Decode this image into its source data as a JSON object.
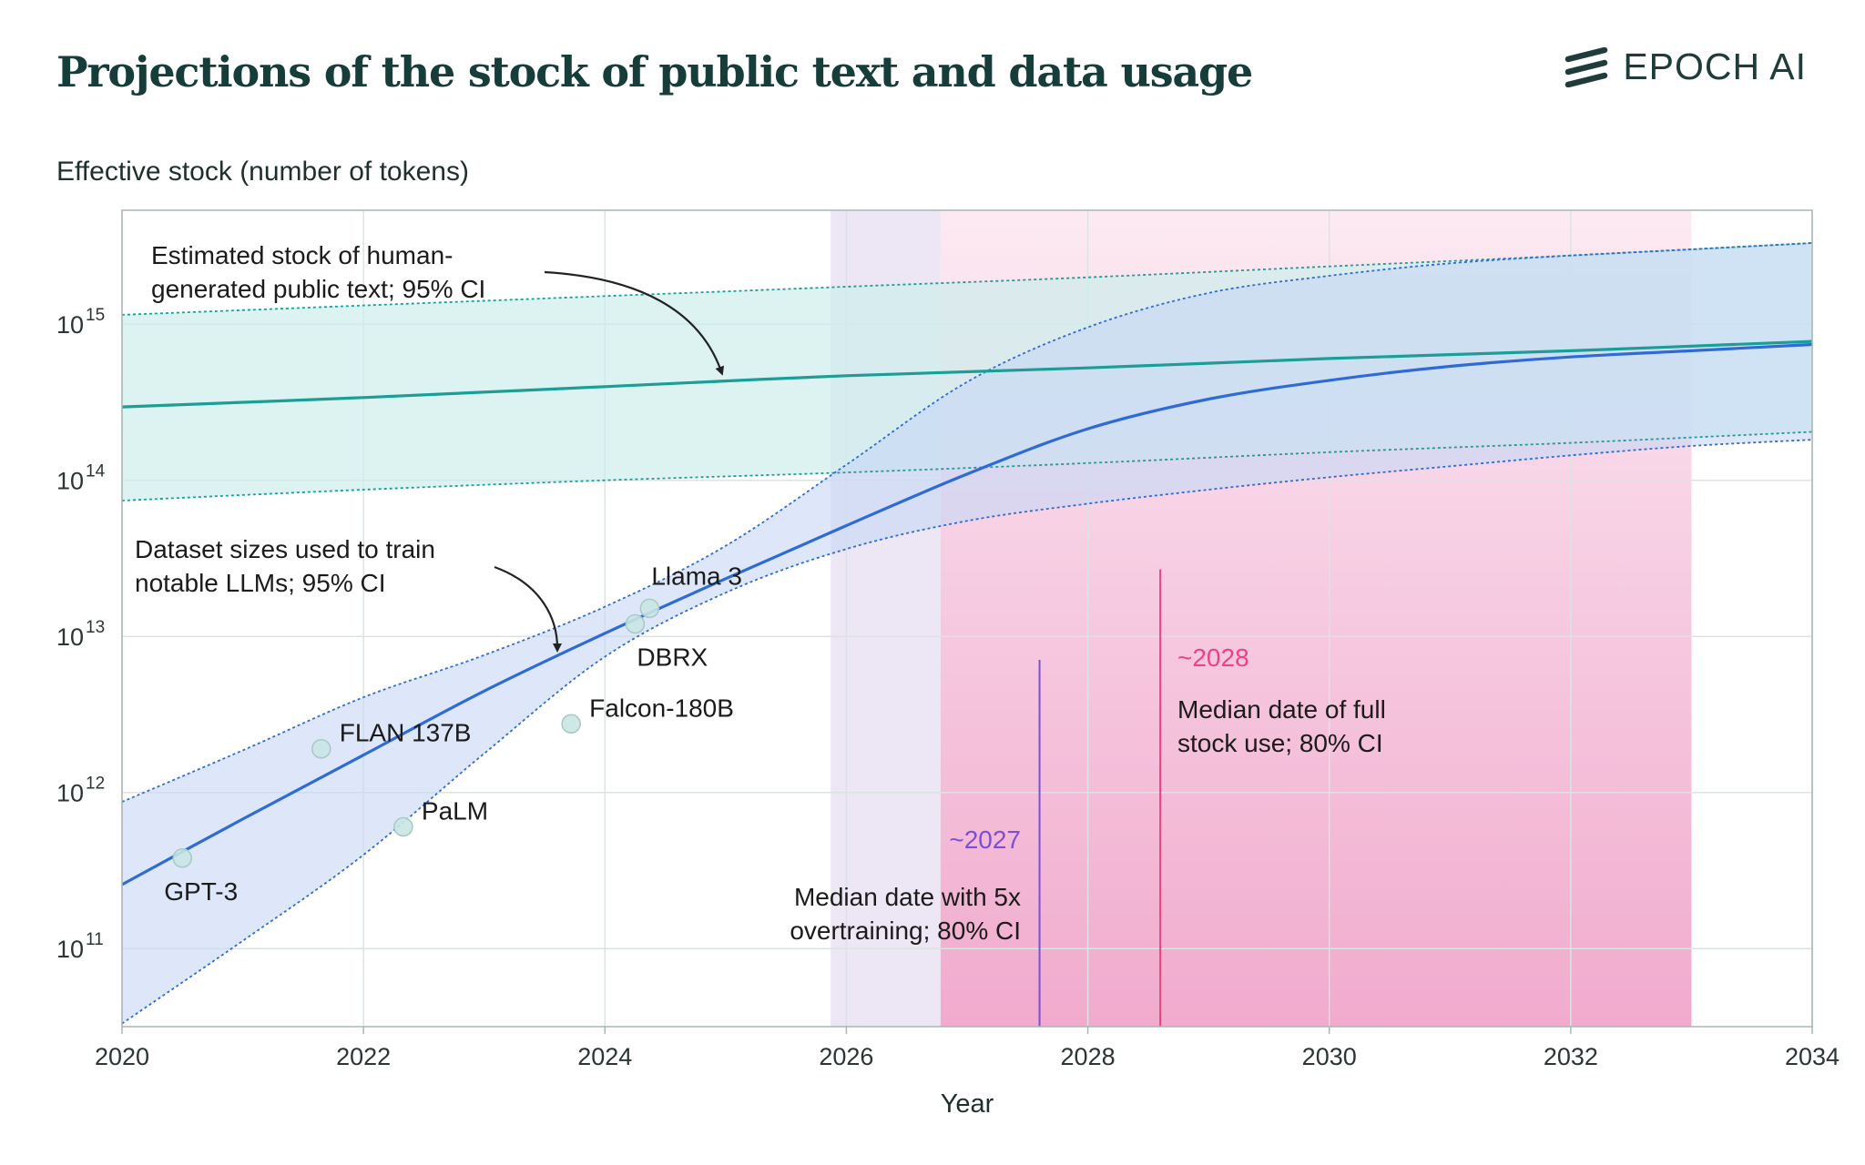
{
  "header": {
    "title": "Projections of the stock of public text and data usage"
  },
  "brand": {
    "name": "EPOCH AI",
    "icon": "epoch-logo-icon"
  },
  "chart_data": {
    "type": "line",
    "xlabel": "Year",
    "ylabel": "Effective stock (number of tokens)",
    "xlim": [
      2020,
      2034
    ],
    "ylim_log10": [
      10.5,
      15.73
    ],
    "yscale": "log",
    "grid": true,
    "x_ticks": [
      {
        "value": 2020,
        "label": "2020"
      },
      {
        "value": 2022,
        "label": "2022"
      },
      {
        "value": 2024,
        "label": "2024"
      },
      {
        "value": 2026,
        "label": "2026"
      },
      {
        "value": 2028,
        "label": "2028"
      },
      {
        "value": 2030,
        "label": "2030"
      },
      {
        "value": 2032,
        "label": "2032"
      },
      {
        "value": 2034,
        "label": "2034"
      }
    ],
    "y_ticks": [
      {
        "exp": 11,
        "base": "10",
        "sup": "11"
      },
      {
        "exp": 12,
        "base": "10",
        "sup": "12"
      },
      {
        "exp": 13,
        "base": "10",
        "sup": "13"
      },
      {
        "exp": 14,
        "base": "10",
        "sup": "14"
      },
      {
        "exp": 15,
        "base": "10",
        "sup": "15"
      }
    ],
    "stock": {
      "color": "#1a9e96",
      "band_color": "#cdeeec",
      "median": [
        [
          2020,
          14.47
        ],
        [
          2022,
          14.53
        ],
        [
          2024,
          14.6
        ],
        [
          2026,
          14.67
        ],
        [
          2028,
          14.72
        ],
        [
          2030,
          14.78
        ],
        [
          2032,
          14.83
        ],
        [
          2034,
          14.89
        ]
      ],
      "upper": [
        [
          2020,
          15.06
        ],
        [
          2022,
          15.12
        ],
        [
          2024,
          15.18
        ],
        [
          2026,
          15.24
        ],
        [
          2028,
          15.3
        ],
        [
          2030,
          15.37
        ],
        [
          2032,
          15.44
        ],
        [
          2034,
          15.52
        ]
      ],
      "lower": [
        [
          2020,
          13.87
        ],
        [
          2022,
          13.94
        ],
        [
          2024,
          14.0
        ],
        [
          2026,
          14.05
        ],
        [
          2028,
          14.11
        ],
        [
          2030,
          14.18
        ],
        [
          2032,
          14.24
        ],
        [
          2034,
          14.31
        ]
      ]
    },
    "dataset": {
      "color": "#2f6bd4",
      "band_color": "#c8d9f5",
      "median": [
        [
          2020,
          11.41
        ],
        [
          2021,
          11.83
        ],
        [
          2022,
          12.24
        ],
        [
          2023,
          12.65
        ],
        [
          2024,
          13.02
        ],
        [
          2025,
          13.37
        ],
        [
          2026,
          13.71
        ],
        [
          2027,
          14.04
        ],
        [
          2028,
          14.33
        ],
        [
          2029,
          14.52
        ],
        [
          2030,
          14.64
        ],
        [
          2031,
          14.73
        ],
        [
          2032,
          14.79
        ],
        [
          2033,
          14.83
        ],
        [
          2034,
          14.87
        ]
      ],
      "upper": [
        [
          2020,
          11.94
        ],
        [
          2021,
          12.27
        ],
        [
          2022,
          12.61
        ],
        [
          2023,
          12.88
        ],
        [
          2024,
          13.19
        ],
        [
          2025,
          13.58
        ],
        [
          2026,
          14.1
        ],
        [
          2027,
          14.63
        ],
        [
          2028,
          14.98
        ],
        [
          2029,
          15.2
        ],
        [
          2030,
          15.31
        ],
        [
          2031,
          15.39
        ],
        [
          2032,
          15.44
        ],
        [
          2033,
          15.48
        ],
        [
          2034,
          15.52
        ]
      ],
      "lower": [
        [
          2020,
          10.52
        ],
        [
          2021,
          11.05
        ],
        [
          2022,
          11.6
        ],
        [
          2023,
          12.25
        ],
        [
          2024,
          12.87
        ],
        [
          2025,
          13.28
        ],
        [
          2026,
          13.56
        ],
        [
          2027,
          13.74
        ],
        [
          2028,
          13.85
        ],
        [
          2029,
          13.94
        ],
        [
          2030,
          14.02
        ],
        [
          2031,
          14.09
        ],
        [
          2032,
          14.16
        ],
        [
          2033,
          14.22
        ],
        [
          2034,
          14.26
        ]
      ]
    },
    "models": [
      {
        "name": "GPT-3",
        "x": 2020.5,
        "log10_tokens": 11.58
      },
      {
        "name": "FLAN 137B",
        "x": 2021.65,
        "log10_tokens": 12.28
      },
      {
        "name": "PaLM",
        "x": 2022.33,
        "log10_tokens": 11.78
      },
      {
        "name": "Falcon-180B",
        "x": 2023.72,
        "log10_tokens": 12.44
      },
      {
        "name": "DBRX",
        "x": 2024.25,
        "log10_tokens": 13.08
      },
      {
        "name": "Llama 3",
        "x": 2024.37,
        "log10_tokens": 13.18
      }
    ],
    "shaded_regions": [
      {
        "name": "overtraining-ci",
        "x0": 2025.87,
        "x1": 2026.78,
        "color": "#ece6f5"
      },
      {
        "name": "full-stock-ci",
        "x0": 2026.78,
        "x1": 2033.0,
        "color": "#f2b6d4"
      }
    ],
    "vlines": [
      {
        "x": 2027.6,
        "color": "#7b4fd8",
        "label": "~2027"
      },
      {
        "x": 2028.6,
        "color": "#e8457e",
        "label": "~2028"
      }
    ],
    "annotations": {
      "stock_line1": "Estimated stock of human-",
      "stock_line2": "generated public text; 95% CI",
      "dataset_line1": "Dataset sizes used to train",
      "dataset_line2": "notable LLMs; 95% CI",
      "overtrain_line1": "Median date with 5x",
      "overtrain_line2": "overtraining; 80% CI",
      "fullstock_line1": "Median date of full",
      "fullstock_line2": "stock use; 80% CI"
    }
  }
}
